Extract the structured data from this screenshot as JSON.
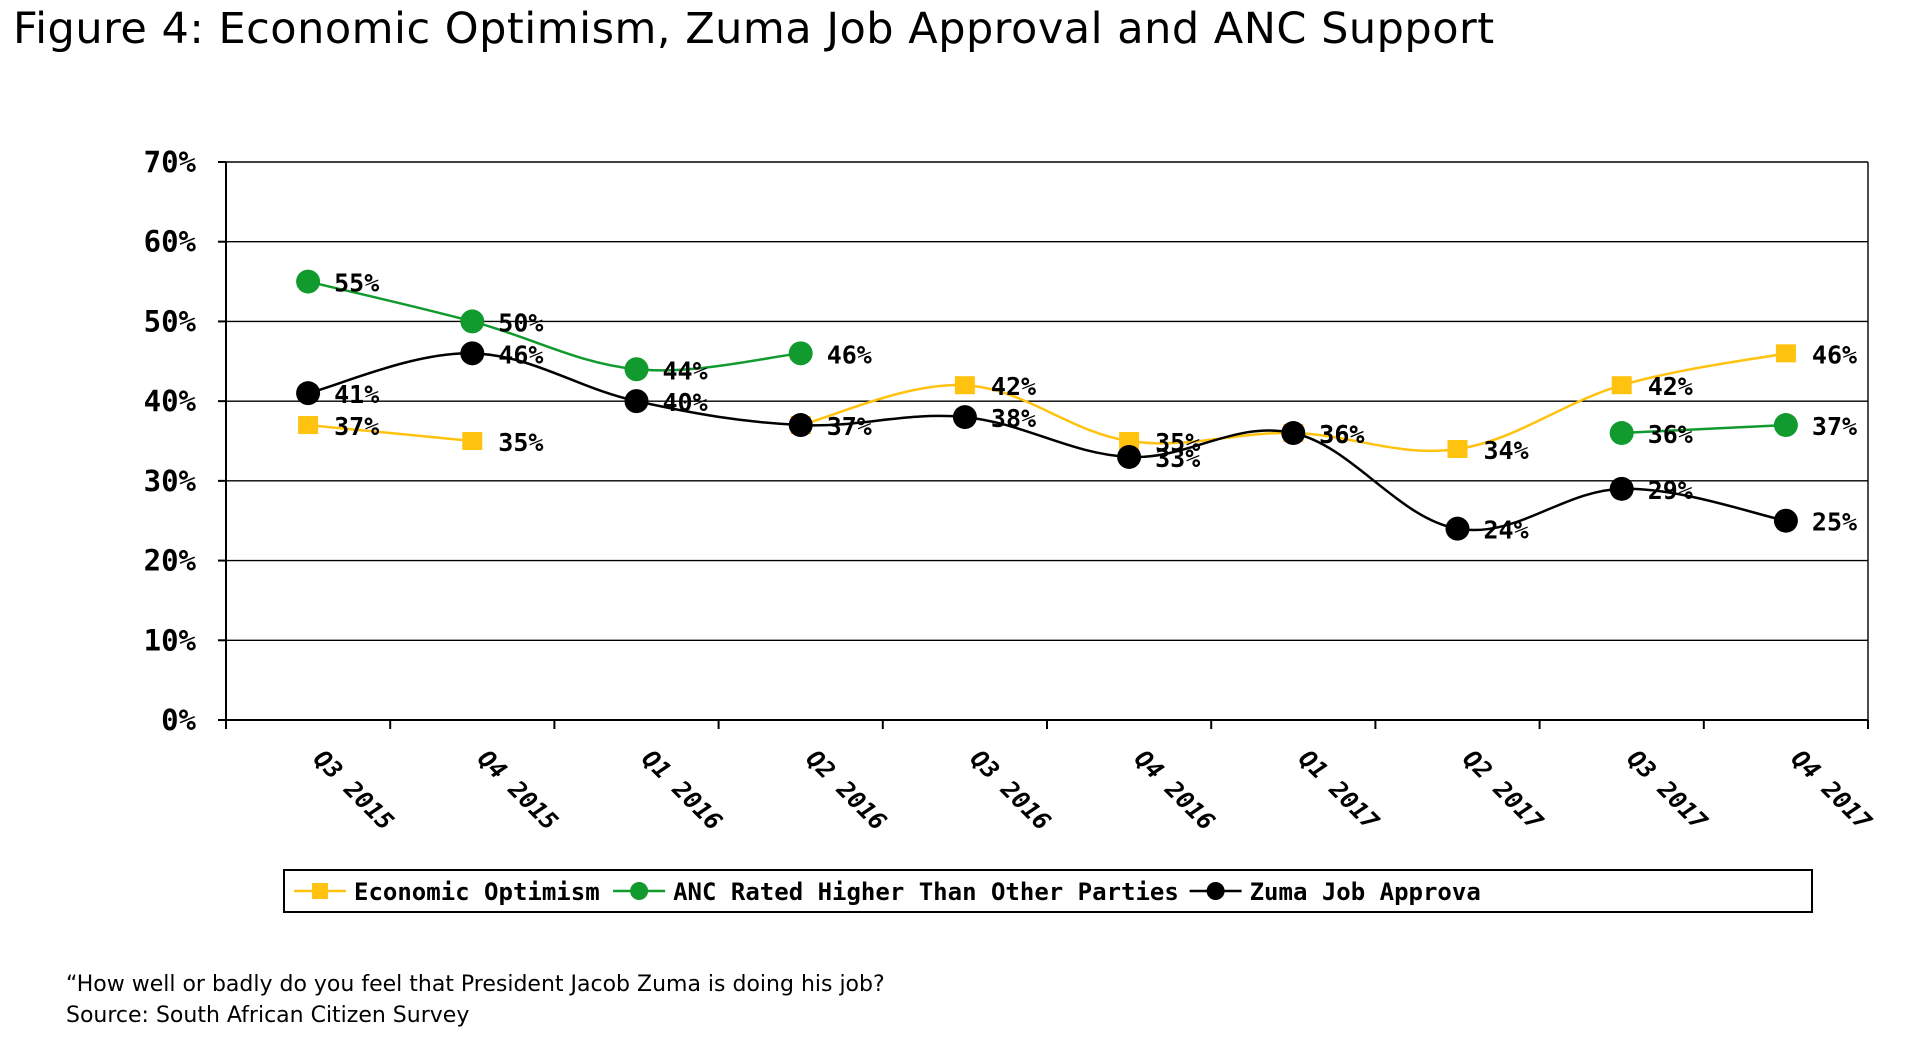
{
  "chart_data": {
    "type": "line",
    "title": "Figure 4: Economic Optimism, Zuma Job Approval and ANC Support",
    "categories": [
      "Q3 2015",
      "Q4 2015",
      "Q1 2016",
      "Q2 2016",
      "Q3 2016",
      "Q4 2016",
      "Q1 2017",
      "Q2 2017",
      "Q3 2017",
      "Q4 2017"
    ],
    "ylim": [
      0,
      70
    ],
    "yticks": [
      0,
      10,
      20,
      30,
      40,
      50,
      60,
      70
    ],
    "ytick_labels": [
      "0%",
      "10%",
      "20%",
      "30%",
      "40%",
      "50%",
      "60%",
      "70%"
    ],
    "grid": true,
    "legend_position": "bottom",
    "series": [
      {
        "name": "Economic Optimism",
        "color": "#FFC20E",
        "marker": "square",
        "values": [
          37,
          35,
          null,
          37,
          42,
          35,
          36,
          34,
          42,
          46
        ],
        "labels": [
          "37%",
          "35%",
          null,
          null,
          "42%",
          "35%",
          "36%",
          "34%",
          "42%",
          "46%"
        ],
        "segment_breaks": [
          1
        ]
      },
      {
        "name": "ANC Rated Higher Than Other Parties",
        "color": "#119A2E",
        "marker": "circle",
        "values": [
          55,
          50,
          44,
          46,
          null,
          null,
          null,
          null,
          36,
          37
        ],
        "labels": [
          "55%",
          "50%",
          "44%",
          "46%",
          null,
          null,
          null,
          null,
          "36%",
          "37%"
        ]
      },
      {
        "name": "Zuma Job Approva",
        "color": "#000000",
        "marker": "circle",
        "values": [
          41,
          46,
          40,
          37,
          38,
          33,
          36,
          24,
          29,
          25
        ],
        "labels": [
          "41%",
          "46%",
          "40%",
          "37%",
          "38%",
          "33%",
          "36%",
          "24%",
          "29%",
          "25%"
        ]
      }
    ]
  },
  "footnotes": {
    "question": "“How well or badly do you feel that President Jacob Zuma is doing his job?",
    "source": "Source: South African Citizen Survey"
  }
}
